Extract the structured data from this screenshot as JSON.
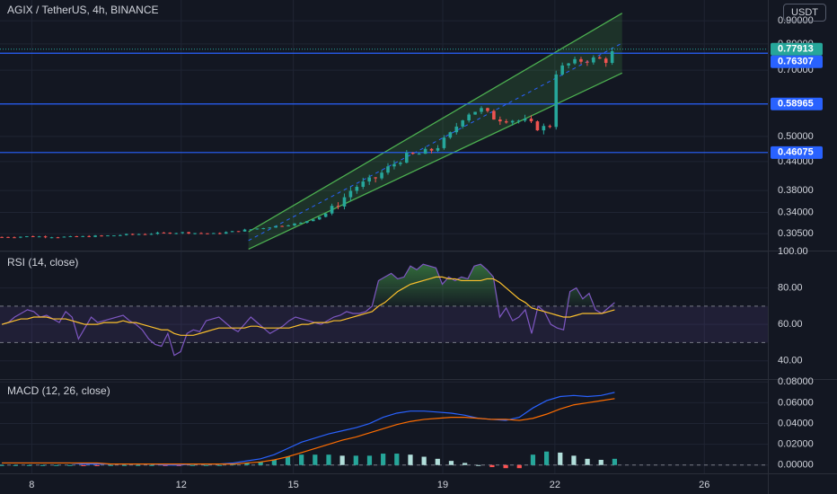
{
  "header": {
    "title": "AGIX / TetherUS, 4h, BINANCE",
    "currency": "USDT"
  },
  "colors": {
    "bg": "#131722",
    "grid": "#1f2433",
    "up": "#26a69a",
    "down": "#ef5350",
    "channel": "#4caf50",
    "hline": "#2962ff",
    "rsi": "#7e57c2",
    "rsi_ma": "#fbc02d",
    "macd": "#2962ff",
    "signal": "#ff6d00",
    "text": "#d1d4dc"
  },
  "chart_data": [
    {
      "type": "candlestick",
      "title": "AGIX / TetherUS, 4h, BINANCE",
      "ylim": [
        0.28,
        1.0
      ],
      "y_scale": "log",
      "y_ticks": [
        "0.90000",
        "0.80000",
        "0.70000",
        "0.50000",
        "0.44000",
        "0.38000",
        "0.34000",
        "0.30500"
      ],
      "x_ticks": [
        "8",
        "12",
        "15",
        "19",
        "22",
        "26"
      ],
      "x_tick_values": [
        8,
        12,
        15,
        19,
        22,
        26
      ],
      "xlim": [
        7.15,
        27.7
      ],
      "price_label": {
        "value": "0.77913",
        "price": 0.779,
        "color": "#26a69a"
      },
      "horizontal_levels": [
        {
          "label": "0.76307",
          "value": 0.76307
        },
        {
          "label": "0.58965",
          "value": 0.58965
        },
        {
          "label": "0.46075",
          "value": 0.46075
        }
      ],
      "channel": {
        "x_start": 13.8,
        "x_end": 23.8,
        "lower_start": 0.282,
        "lower_end": 0.69,
        "upper_start": 0.308,
        "upper_end": 0.935
      },
      "anchors": [
        [
          7.2,
          0.3
        ],
        [
          8,
          0.301
        ],
        [
          9,
          0.3
        ],
        [
          10,
          0.302
        ],
        [
          11,
          0.305
        ],
        [
          12,
          0.307
        ],
        [
          12.9,
          0.305
        ],
        [
          13.6,
          0.31
        ],
        [
          14.4,
          0.316
        ],
        [
          15.2,
          0.322
        ],
        [
          15.8,
          0.335
        ],
        [
          16.2,
          0.355
        ],
        [
          16.6,
          0.385
        ],
        [
          17.2,
          0.405
        ],
        [
          17.6,
          0.43
        ],
        [
          18.0,
          0.452
        ],
        [
          18.4,
          0.458
        ],
        [
          18.8,
          0.47
        ],
        [
          19.2,
          0.505
        ],
        [
          19.6,
          0.56
        ],
        [
          20.0,
          0.575
        ],
        [
          20.4,
          0.548
        ],
        [
          20.8,
          0.545
        ],
        [
          21.2,
          0.54
        ],
        [
          21.6,
          0.52
        ],
        [
          21.9,
          0.53
        ],
        [
          22.0,
          0.69
        ],
        [
          22.3,
          0.72
        ],
        [
          22.7,
          0.735
        ],
        [
          23.1,
          0.742
        ],
        [
          23.4,
          0.735
        ],
        [
          23.6,
          0.779
        ]
      ]
    },
    {
      "type": "line",
      "title": "RSI (14, close)",
      "ylim": [
        30,
        100
      ],
      "y_ticks": [
        "100.00",
        "80.00",
        "60.00",
        "40.00"
      ],
      "y_tick_values": [
        100,
        80,
        60,
        40
      ],
      "band": [
        50,
        70
      ],
      "series": [
        {
          "values": [
            60,
            61,
            64,
            66,
            68,
            67,
            64,
            65,
            63,
            61,
            67,
            64,
            52,
            58,
            64,
            61,
            62,
            63,
            64,
            65,
            62,
            60,
            57,
            52,
            49,
            48,
            55,
            43,
            45,
            55,
            57,
            56,
            62,
            63,
            64,
            61,
            58,
            56,
            60,
            64,
            61,
            58,
            55,
            57,
            59,
            62,
            64,
            63,
            62,
            61,
            60,
            62,
            64,
            65,
            67,
            66,
            66,
            67,
            70,
            84,
            86,
            88,
            85,
            86,
            92,
            90,
            93,
            92,
            91,
            82,
            86,
            84,
            86,
            85,
            92,
            93,
            90,
            86,
            64,
            69,
            62,
            64,
            68,
            55,
            70,
            67,
            60,
            58,
            57,
            78,
            80,
            74,
            77,
            68,
            66,
            69,
            72
          ]
        },
        {
          "values": [
            60,
            61,
            62,
            63,
            63,
            64,
            64,
            64,
            63,
            63,
            63,
            62,
            61,
            60,
            60,
            60,
            61,
            61,
            61,
            62,
            61,
            61,
            60,
            59,
            58,
            57,
            57,
            55,
            54,
            54,
            54,
            55,
            56,
            57,
            58,
            58,
            58,
            58,
            58,
            59,
            59,
            58,
            58,
            58,
            58,
            58,
            59,
            60,
            60,
            61,
            61,
            61,
            62,
            62,
            63,
            64,
            65,
            66,
            67,
            70,
            72,
            75,
            78,
            80,
            82,
            83,
            84,
            85,
            86,
            86,
            85,
            85,
            84,
            84,
            84,
            84,
            85,
            85,
            83,
            80,
            77,
            74,
            72,
            69,
            68,
            67,
            66,
            65,
            64,
            64,
            65,
            66,
            66,
            66,
            66,
            67,
            68
          ]
        }
      ]
    },
    {
      "type": "bar",
      "title": "MACD (12, 26, close)",
      "ylim": [
        -0.008,
        0.082
      ],
      "y_ticks": [
        "0.08000",
        "0.06000",
        "0.04000",
        "0.02000",
        "0.00000"
      ],
      "y_tick_values": [
        0.08,
        0.06,
        0.04,
        0.02,
        0.0
      ],
      "series": [
        {
          "values": [
            0.002,
            0.002,
            0.002,
            0.002,
            0.002,
            0.002,
            0.001,
            0.001,
            0.001,
            0.001,
            0.001,
            0.001,
            0.0,
            0.0,
            0.001,
            0.001,
            0.001,
            0.002,
            0.004,
            0.006,
            0.01,
            0.016,
            0.022,
            0.026,
            0.03,
            0.033,
            0.036,
            0.04,
            0.046,
            0.05,
            0.052,
            0.052,
            0.051,
            0.05,
            0.048,
            0.045,
            0.044,
            0.043,
            0.046,
            0.055,
            0.062,
            0.066,
            0.067,
            0.066,
            0.067,
            0.07
          ]
        },
        {
          "values": [
            0.002,
            0.002,
            0.002,
            0.002,
            0.002,
            0.002,
            0.002,
            0.002,
            0.001,
            0.001,
            0.001,
            0.001,
            0.001,
            0.001,
            0.001,
            0.001,
            0.001,
            0.001,
            0.002,
            0.003,
            0.005,
            0.008,
            0.012,
            0.016,
            0.02,
            0.024,
            0.027,
            0.031,
            0.035,
            0.039,
            0.042,
            0.044,
            0.045,
            0.046,
            0.046,
            0.045,
            0.044,
            0.044,
            0.043,
            0.045,
            0.049,
            0.054,
            0.058,
            0.06,
            0.062,
            0.064
          ]
        },
        {
          "values": [
            0.0,
            0.0,
            0.0,
            0.0,
            0.0,
            0.0,
            -0.001,
            -0.001,
            0.0,
            0.0,
            0.0,
            0.0,
            -0.001,
            -0.001,
            0.0,
            0.0,
            0.0,
            0.001,
            0.002,
            0.003,
            0.005,
            0.008,
            0.01,
            0.01,
            0.01,
            0.009,
            0.009,
            0.009,
            0.011,
            0.011,
            0.01,
            0.008,
            0.006,
            0.004,
            0.002,
            0.0,
            -0.002,
            -0.003,
            -0.003,
            0.01,
            0.013,
            0.012,
            0.009,
            0.006,
            0.005,
            0.006
          ]
        }
      ]
    }
  ]
}
